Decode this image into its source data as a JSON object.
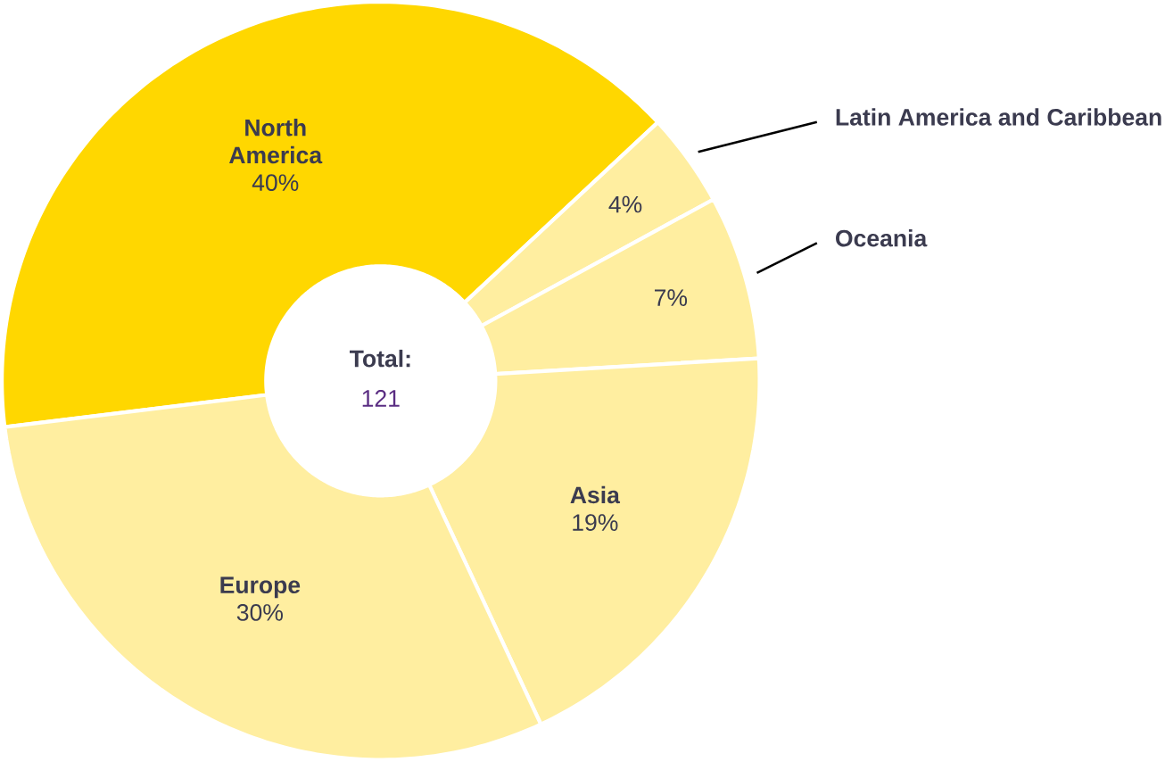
{
  "chart_data": {
    "type": "donut",
    "categories": [
      "North America",
      "Latin America and Caribbean",
      "Oceania",
      "Asia",
      "Europe"
    ],
    "values": [
      40,
      4,
      7,
      19,
      30
    ],
    "value_labels": [
      "40%",
      "4%",
      "7%",
      "19%",
      "30%"
    ],
    "colors": [
      "#ffd700",
      "#ffeea0",
      "#ffeea0",
      "#ffeea0",
      "#ffeea0"
    ],
    "annotations": [
      "Total:",
      "121"
    ]
  }
}
